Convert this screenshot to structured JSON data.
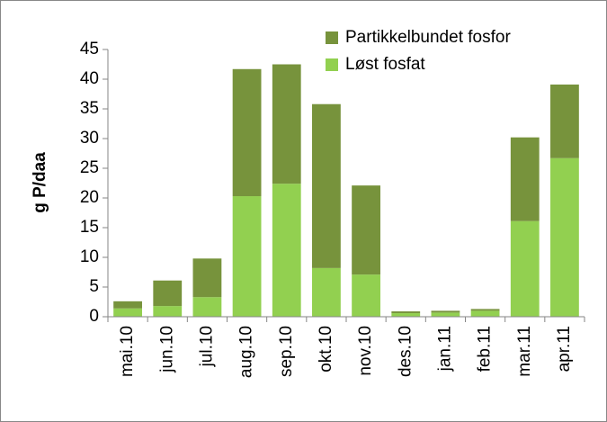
{
  "chart_data": {
    "type": "stacked_bar",
    "y_label": "g P/daa",
    "categories": [
      "mai.10",
      "jun.10",
      "jul.10",
      "aug.10",
      "sep.10",
      "okt.10",
      "nov.10",
      "des.10",
      "jan.11",
      "feb.11",
      "mar.11",
      "apr.11"
    ],
    "series": [
      {
        "name": "Løst fosfat",
        "color": "#92d050",
        "values": [
          1.4,
          1.8,
          3.3,
          20.3,
          22.4,
          8.2,
          7.1,
          0.6,
          0.7,
          1.0,
          16.1,
          26.7
        ]
      },
      {
        "name": "Partikkelbundet fosfor",
        "color": "#77933c",
        "values": [
          1.2,
          4.3,
          6.5,
          21.4,
          20.1,
          27.6,
          15.0,
          0.3,
          0.3,
          0.3,
          14.1,
          12.4
        ]
      }
    ],
    "ylim": [
      0,
      45
    ],
    "yticks": [
      0,
      5,
      10,
      15,
      20,
      25,
      30,
      35,
      40,
      45
    ],
    "legend": "top-right"
  }
}
